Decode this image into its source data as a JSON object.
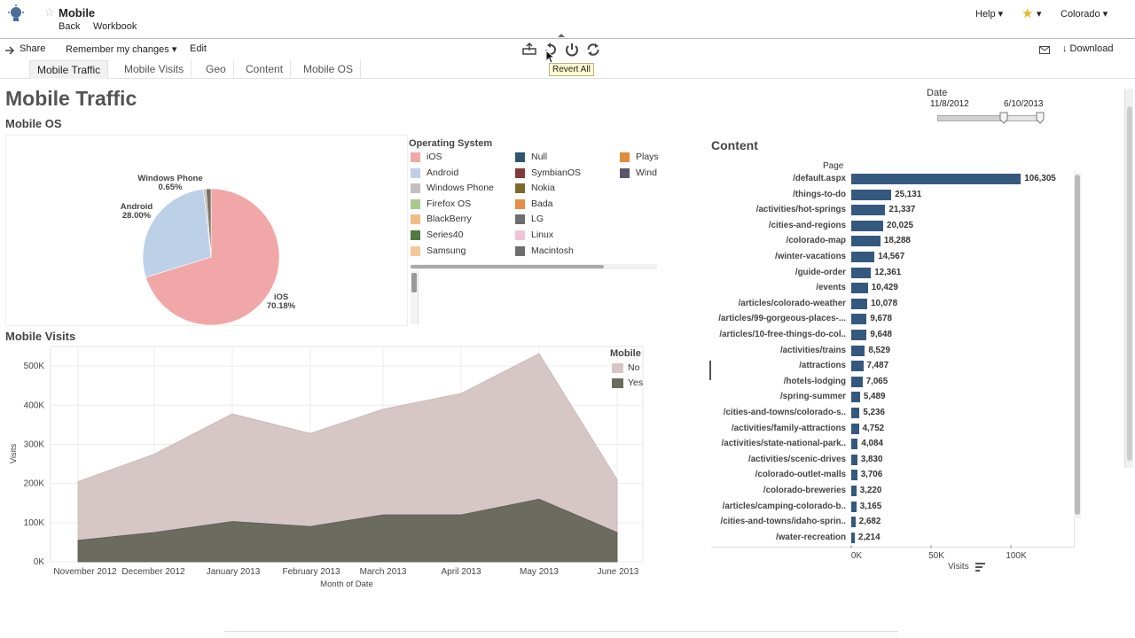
{
  "header": {
    "workbook_title": "Mobile",
    "back_label": "Back",
    "workbook_label": "Workbook",
    "help_label": "Help ▾",
    "favorite_caret": "▾",
    "user_label": "Colorado ▾"
  },
  "toolbar": {
    "share_label": "Share",
    "remember_label": "Remember my changes ▾",
    "edit_label": "Edit",
    "download_label": "↓ Download",
    "tooltip": "Revert All"
  },
  "tabs": [
    {
      "label": "Mobile Traffic",
      "active": true
    },
    {
      "label": "Mobile Visits",
      "active": false
    },
    {
      "label": "Geo",
      "active": false
    },
    {
      "label": "Content",
      "active": false
    },
    {
      "label": "Mobile OS",
      "active": false
    }
  ],
  "dashboard": {
    "title": "Mobile Traffic",
    "mobile_os_title": "Mobile OS",
    "mobile_visits_title": "Mobile Visits",
    "content_title": "Content"
  },
  "date_filter": {
    "label": "Date",
    "start": "11/8/2012",
    "end": "6/10/2013"
  },
  "os_legend": {
    "title": "Operating System",
    "items": [
      {
        "label": "iOS",
        "color": "#f1a7a7"
      },
      {
        "label": "Android",
        "color": "#bcd0e8"
      },
      {
        "label": "Windows Phone",
        "color": "#c4c0c2"
      },
      {
        "label": "Firefox OS",
        "color": "#a9c98f"
      },
      {
        "label": "BlackBerry",
        "color": "#f1bc83"
      },
      {
        "label": "Series40",
        "color": "#507a3e"
      },
      {
        "label": "Samsung",
        "color": "#f6c79b"
      },
      {
        "label": "Null",
        "color": "#2f5673"
      },
      {
        "label": "SymbianOS",
        "color": "#853a3a"
      },
      {
        "label": "Nokia",
        "color": "#7a6b2d"
      },
      {
        "label": "Bada",
        "color": "#e98c47"
      },
      {
        "label": "LG",
        "color": "#6d6d6d"
      },
      {
        "label": "Linux",
        "color": "#f1c2d8"
      },
      {
        "label": "Macintosh",
        "color": "#6e6e6e"
      },
      {
        "label": "Plays",
        "color": "#e08b3f"
      },
      {
        "label": "Wind",
        "color": "#5e556a"
      }
    ]
  },
  "visits_legend": {
    "title": "Mobile",
    "items": [
      {
        "label": "No",
        "color": "#d7c6c6"
      },
      {
        "label": "Yes",
        "color": "#6b6b5f"
      }
    ]
  },
  "chart_data": [
    {
      "type": "pie",
      "title": "Mobile OS",
      "slices": [
        {
          "label": "iOS",
          "percent": 70.18,
          "value_label": "70.18%",
          "color": "#f1a7a7"
        },
        {
          "label": "Android",
          "percent": 28.0,
          "value_label": "28.00%",
          "color": "#bcd0e8"
        },
        {
          "label": "Windows Phone",
          "percent": 0.65,
          "value_label": "0.65%",
          "color": "#c4c0c2"
        },
        {
          "label": "Other",
          "percent": 1.17,
          "value_label": "",
          "color": "#7a7263"
        }
      ]
    },
    {
      "type": "area",
      "title": "Mobile Visits",
      "xlabel": "Month of Date",
      "ylabel": "Visits",
      "categories": [
        "November 2012",
        "December 2012",
        "January 2013",
        "February 2013",
        "March 2013",
        "April 2013",
        "May 2013",
        "June 2013"
      ],
      "ylim": [
        0,
        550000
      ],
      "yticks": [
        "0K",
        "100K",
        "200K",
        "300K",
        "400K",
        "500K"
      ],
      "series": [
        {
          "name": "Yes",
          "values": [
            55000,
            75000,
            103000,
            90000,
            120000,
            120000,
            160000,
            75000
          ],
          "color": "#6b6b5f"
        },
        {
          "name": "No",
          "values": [
            150000,
            200000,
            275000,
            238000,
            270000,
            310000,
            372000,
            135000
          ],
          "color": "#d7c6c6"
        }
      ]
    },
    {
      "type": "bar",
      "title": "Content",
      "category_header": "Page",
      "xlabel": "Visits",
      "xlim": [
        0,
        140000
      ],
      "xticks": [
        "0K",
        "50K",
        "100K"
      ],
      "categories": [
        "/default.aspx",
        "/things-to-do",
        "/activities/hot-springs",
        "/cities-and-regions",
        "/colorado-map",
        "/winter-vacations",
        "/guide-order",
        "/events",
        "/articles/colorado-weather",
        "/articles/99-gorgeous-places-...",
        "/articles/10-free-things-do-col..",
        "/activities/trains",
        "/attractions",
        "/hotels-lodging",
        "/spring-summer",
        "/cities-and-towns/colorado-s..",
        "/activities/family-attractions",
        "/activities/state-national-park..",
        "/activities/scenic-drives",
        "/colorado-outlet-malls",
        "/colorado-breweries",
        "/articles/camping-colorado-b..",
        "/cities-and-towns/idaho-sprin..",
        "/water-recreation"
      ],
      "values": [
        106305,
        25131,
        21337,
        20025,
        18288,
        14567,
        12361,
        10429,
        10078,
        9678,
        9648,
        8529,
        7487,
        7065,
        5489,
        5236,
        4752,
        4084,
        3830,
        3706,
        3220,
        3165,
        2682,
        2214
      ],
      "value_labels": [
        "106,305",
        "25,131",
        "21,337",
        "20,025",
        "18,288",
        "14,567",
        "12,361",
        "10,429",
        "10,078",
        "9,678",
        "9,648",
        "8,529",
        "7,487",
        "7,065",
        "5,489",
        "5,236",
        "4,752",
        "4,084",
        "3,830",
        "3,706",
        "3,220",
        "3,165",
        "2,682",
        "2,214"
      ],
      "color": "#35587e"
    }
  ]
}
